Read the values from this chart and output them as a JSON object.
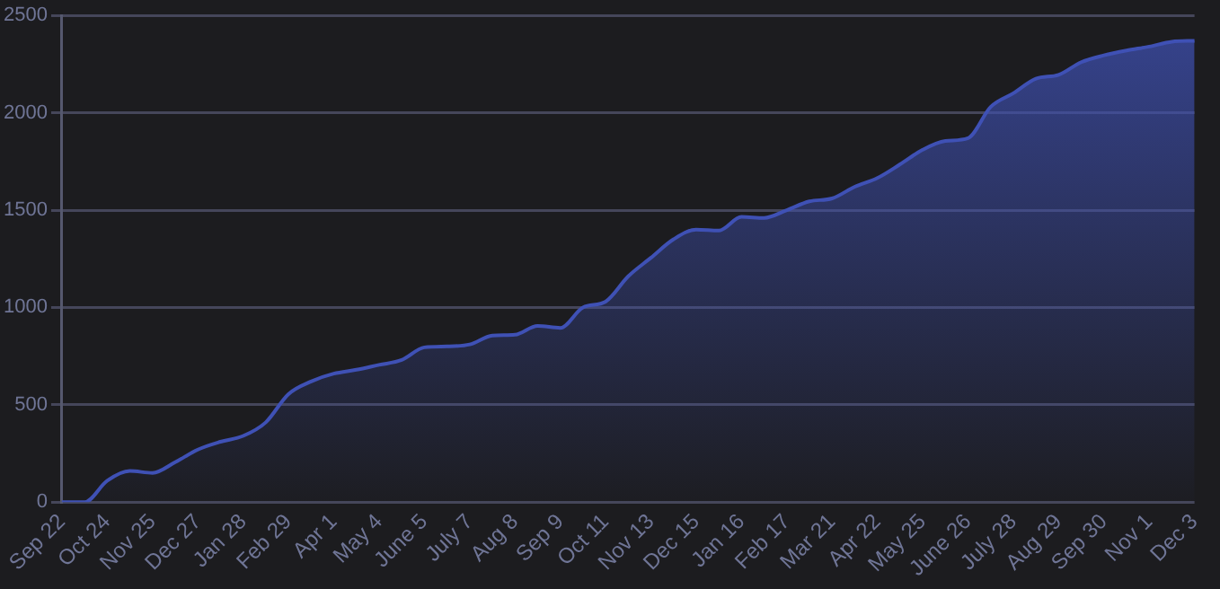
{
  "chart_data": {
    "type": "area",
    "categories": [
      "Sep 22",
      null,
      "Oct 24",
      null,
      "Nov 25",
      null,
      "Dec 27",
      null,
      "Jan 28",
      null,
      "Feb 29",
      null,
      "Apr 1",
      null,
      "May 4",
      null,
      "June 5",
      null,
      "July 7",
      null,
      "Aug 8",
      null,
      "Sep 9",
      null,
      "Oct 11",
      null,
      "Nov 13",
      null,
      "Dec 15",
      null,
      "Jan 16",
      null,
      "Feb 17",
      null,
      "Mar 21",
      null,
      "Apr 22",
      null,
      "May 25",
      null,
      "June 26",
      null,
      "July 28",
      null,
      "Aug 29",
      null,
      "Sep 30",
      null,
      "Nov 1",
      null,
      "Dec 3"
    ],
    "series": [
      {
        "color": "#3f51b5",
        "values": [
          0,
          0,
          110,
          160,
          150,
          205,
          270,
          310,
          340,
          410,
          555,
          620,
          660,
          680,
          705,
          730,
          795,
          800,
          810,
          855,
          860,
          905,
          895,
          1000,
          1030,
          1160,
          1255,
          1350,
          1400,
          1395,
          1465,
          1460,
          1500,
          1545,
          1560,
          1620,
          1665,
          1735,
          1810,
          1855,
          1870,
          2030,
          2100,
          2175,
          2195,
          2260,
          2295,
          2320,
          2340,
          2365,
          2370
        ]
      }
    ],
    "ylim": [
      0,
      2500
    ],
    "yticks": [
      0,
      500,
      1000,
      1500,
      2000,
      2500
    ],
    "grid": "y",
    "legend": false
  }
}
